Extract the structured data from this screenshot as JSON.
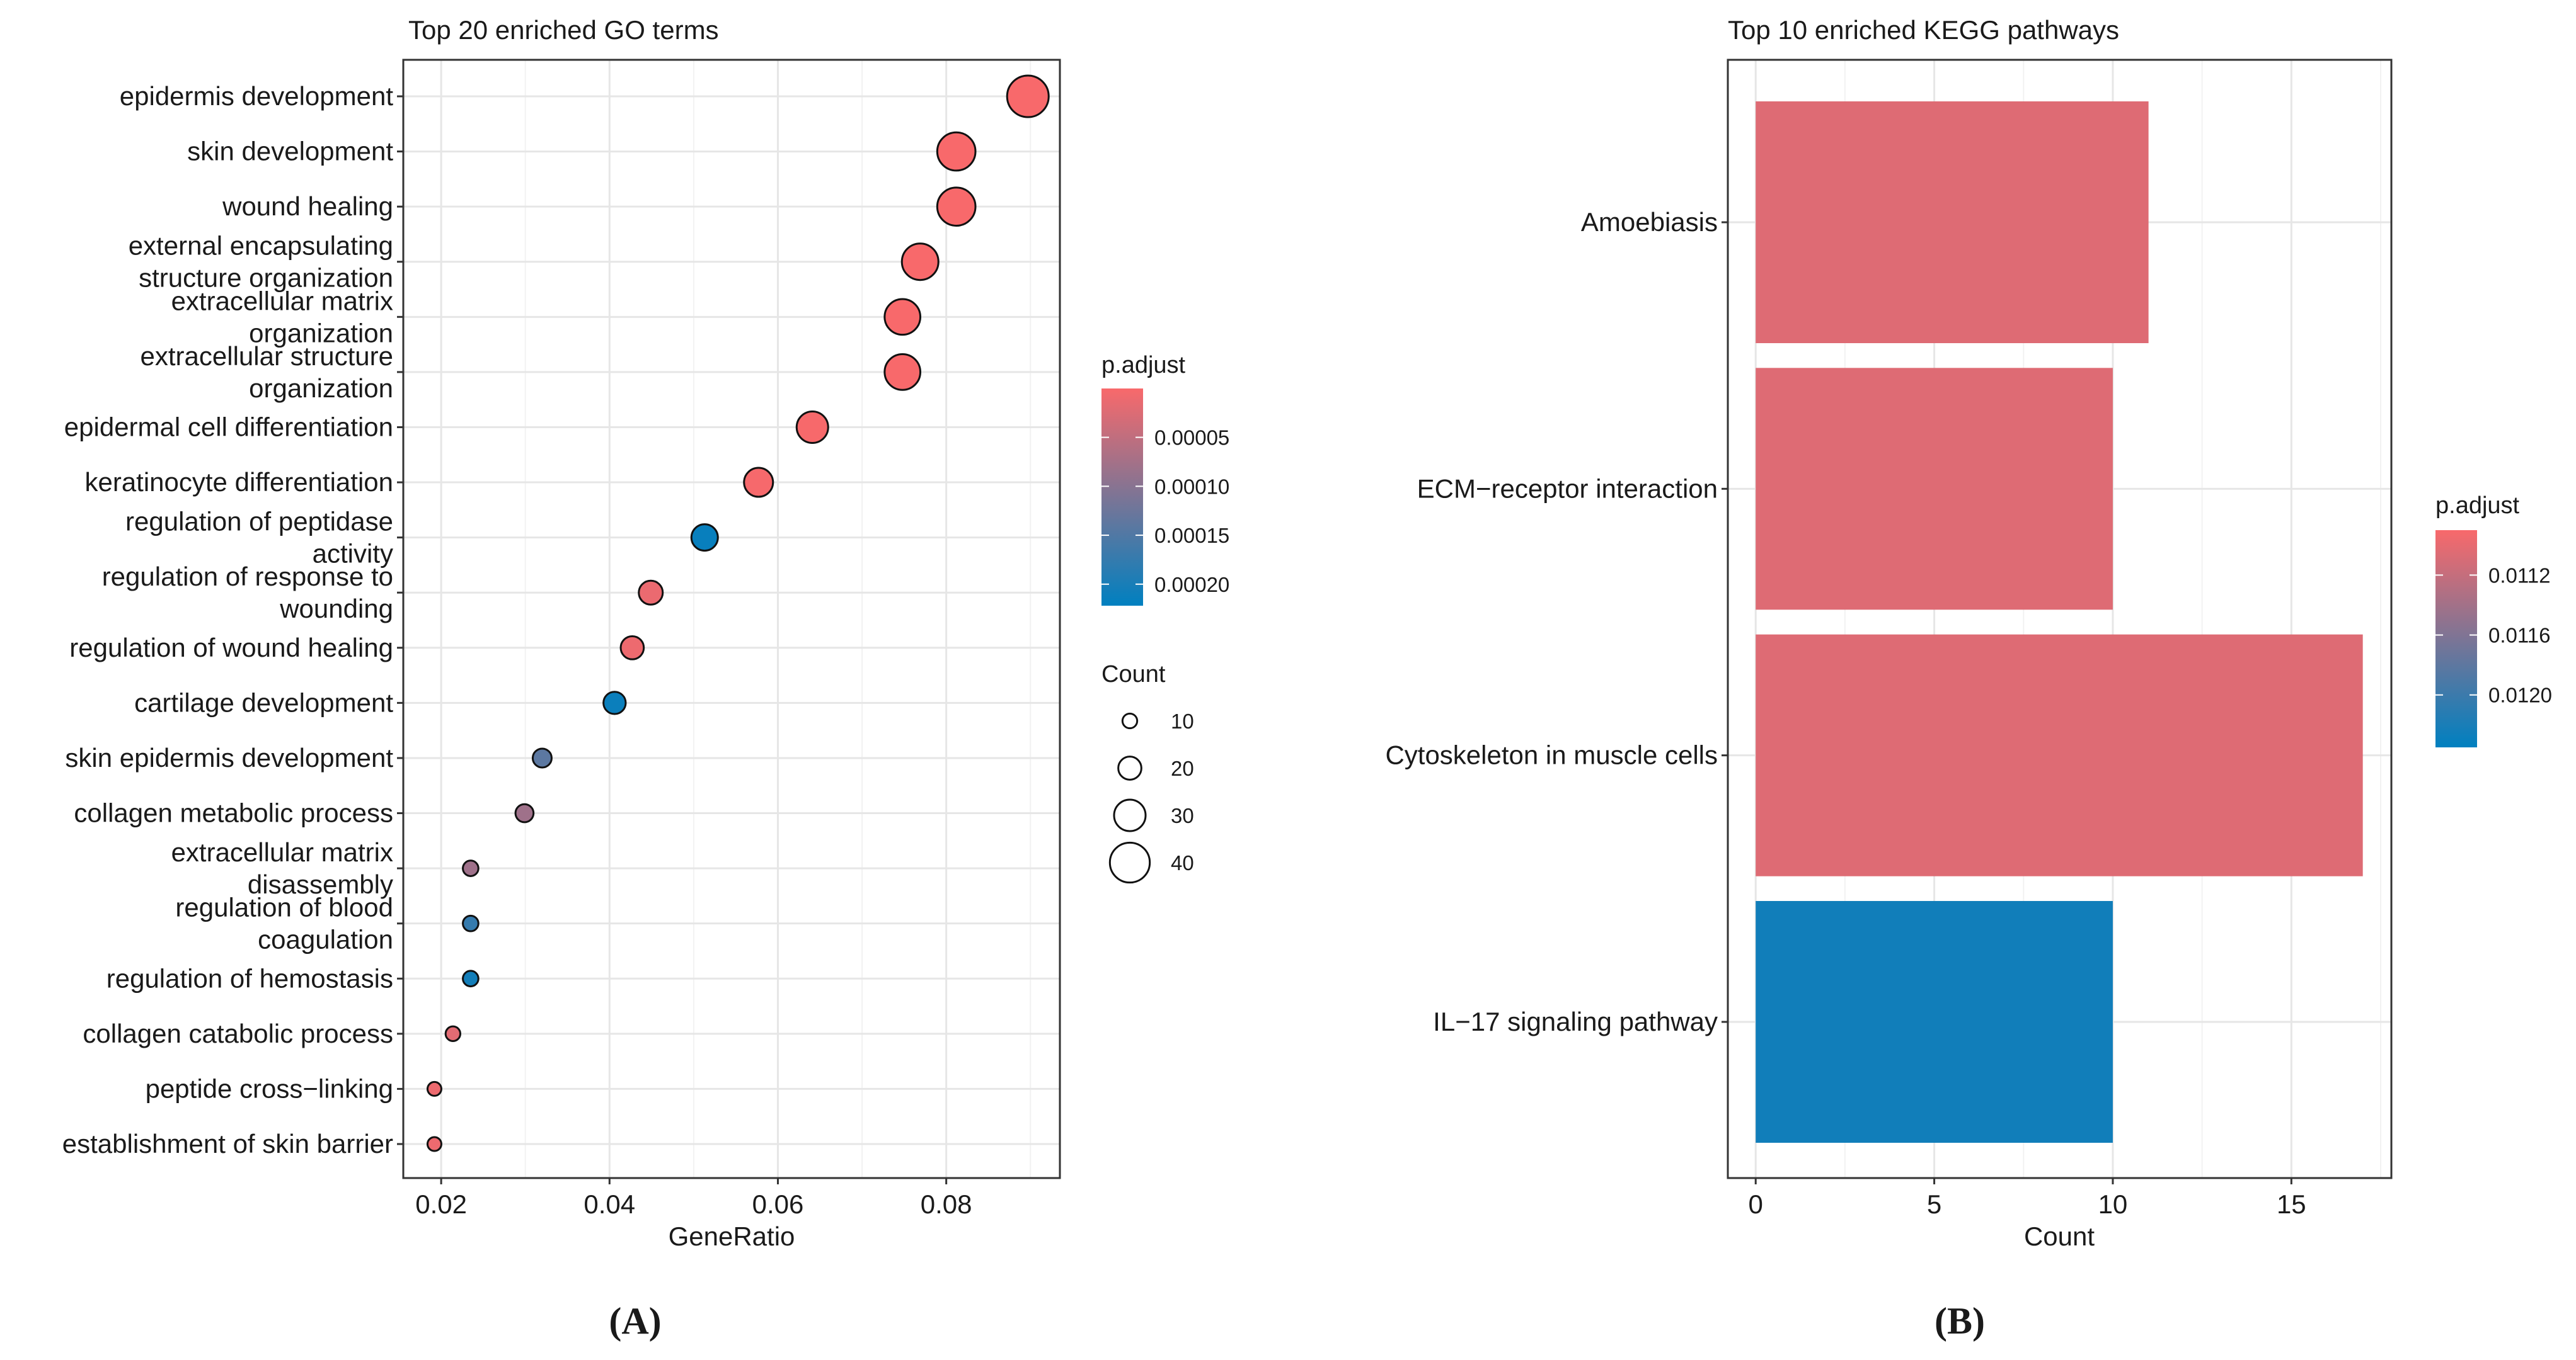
{
  "figure": {
    "panel_labels": [
      "(A)",
      "(B)"
    ]
  },
  "chart_data": [
    {
      "type": "scatter",
      "title": "Top 20 enriched GO terms",
      "xlabel": "GeneRatio",
      "ylabel": "",
      "xlim": [
        0.0155,
        0.0935
      ],
      "xticks": [
        0.02,
        0.04,
        0.06,
        0.08
      ],
      "xtick_labels": [
        "0.02",
        "0.04",
        "0.06",
        "0.08"
      ],
      "grid": true,
      "terms": [
        {
          "label": [
            "epidermis development"
          ],
          "gene_ratio": 0.0897,
          "count": 42,
          "p_adjust": 2e-07
        },
        {
          "label": [
            "skin development"
          ],
          "gene_ratio": 0.0812,
          "count": 38,
          "p_adjust": 3e-07
        },
        {
          "label": [
            "wound healing"
          ],
          "gene_ratio": 0.0812,
          "count": 38,
          "p_adjust": 3e-07
        },
        {
          "label": [
            "external encapsulating",
            "structure organization"
          ],
          "gene_ratio": 0.0769,
          "count": 36,
          "p_adjust": 4e-07
        },
        {
          "label": [
            "extracellular matrix",
            "organization"
          ],
          "gene_ratio": 0.0748,
          "count": 35,
          "p_adjust": 4e-07
        },
        {
          "label": [
            "extracellular structure",
            "organization"
          ],
          "gene_ratio": 0.0748,
          "count": 35,
          "p_adjust": 4e-07
        },
        {
          "label": [
            "epidermal cell differentiation"
          ],
          "gene_ratio": 0.0641,
          "count": 30,
          "p_adjust": 1e-06
        },
        {
          "label": [
            "keratinocyte differentiation"
          ],
          "gene_ratio": 0.0577,
          "count": 27,
          "p_adjust": 2e-06
        },
        {
          "label": [
            "regulation of peptidase",
            "activity"
          ],
          "gene_ratio": 0.0513,
          "count": 24,
          "p_adjust": 0.000215
        },
        {
          "label": [
            "regulation of response to",
            "wounding"
          ],
          "gene_ratio": 0.0449,
          "count": 21,
          "p_adjust": 1.2e-05
        },
        {
          "label": [
            "regulation of wound healing"
          ],
          "gene_ratio": 0.0427,
          "count": 20,
          "p_adjust": 1e-05
        },
        {
          "label": [
            "cartilage development"
          ],
          "gene_ratio": 0.0406,
          "count": 19,
          "p_adjust": 0.000212
        },
        {
          "label": [
            "skin epidermis development"
          ],
          "gene_ratio": 0.032,
          "count": 15,
          "p_adjust": 0.00014
        },
        {
          "label": [
            "collagen metabolic process"
          ],
          "gene_ratio": 0.0299,
          "count": 14,
          "p_adjust": 8e-05
        },
        {
          "label": [
            "extracellular matrix",
            "disassembly"
          ],
          "gene_ratio": 0.0235,
          "count": 11,
          "p_adjust": 8e-05
        },
        {
          "label": [
            "regulation of blood",
            "coagulation"
          ],
          "gene_ratio": 0.0235,
          "count": 11,
          "p_adjust": 0.000175
        },
        {
          "label": [
            "regulation of hemostasis"
          ],
          "gene_ratio": 0.0235,
          "count": 11,
          "p_adjust": 0.000205
        },
        {
          "label": [
            "collagen catabolic process"
          ],
          "gene_ratio": 0.0214,
          "count": 10,
          "p_adjust": 2e-05
        },
        {
          "label": [
            "peptide cross−linking"
          ],
          "gene_ratio": 0.0192,
          "count": 9,
          "p_adjust": 1e-05
        },
        {
          "label": [
            "establishment of skin barrier"
          ],
          "gene_ratio": 0.0192,
          "count": 9,
          "p_adjust": 1e-05
        }
      ],
      "color_legend": {
        "title": "p.adjust",
        "low_color": "#f8696b",
        "high_color": "#0080c0",
        "range": [
          1e-07,
          0.000222
        ],
        "ticks": [
          5e-05,
          0.0001,
          0.00015,
          0.0002
        ],
        "tick_labels": [
          "0.00005",
          "0.00010",
          "0.00015",
          "0.00020"
        ]
      },
      "size_legend": {
        "title": "Count",
        "values": [
          10,
          20,
          30,
          40
        ],
        "labels": [
          "10",
          "20",
          "30",
          "40"
        ]
      }
    },
    {
      "type": "bar",
      "orientation": "horizontal",
      "title": "Top 10 enriched KEGG pathways",
      "xlabel": "Count",
      "ylabel": "",
      "xlim": [
        -0.78,
        17.8
      ],
      "xticks": [
        0,
        5,
        10,
        15
      ],
      "xtick_labels": [
        "0",
        "5",
        "10",
        "15"
      ],
      "grid": true,
      "categories": [
        "Amoebiasis",
        "ECM−receptor interaction",
        "Cytoskeleton in muscle cells",
        "IL−17 signaling pathway"
      ],
      "values": [
        11,
        10,
        17,
        10
      ],
      "p_adjust": [
        0.01105,
        0.01105,
        0.01105,
        0.01225
      ],
      "color_legend": {
        "title": "p.adjust",
        "low_color": "#f8696b",
        "high_color": "#0080c0",
        "range": [
          0.0109,
          0.01235
        ],
        "ticks": [
          0.0112,
          0.0116,
          0.012
        ],
        "tick_labels": [
          "0.0112",
          "0.0116",
          "0.0120"
        ]
      }
    }
  ]
}
